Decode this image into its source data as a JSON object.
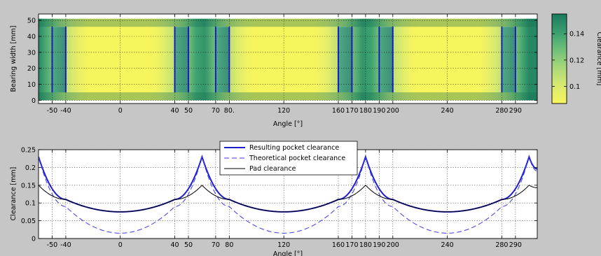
{
  "chart_data": [
    {
      "type": "heatmap",
      "xlabel": "Angle [°]",
      "ylabel": "Bearing width [mm]",
      "colorbar_label": "Clearance [mm]",
      "xlim": [
        -60,
        306
      ],
      "ylim": [
        -2,
        54
      ],
      "x_ticks": [
        -50,
        -40,
        0,
        40,
        50,
        70,
        80,
        120,
        160,
        170,
        180,
        190,
        200,
        240,
        280,
        290
      ],
      "x_tick_labels": [
        "-50",
        "-40",
        "0",
        "40",
        "50",
        "70",
        "80.",
        "120",
        "160",
        "170",
        "180",
        "190",
        "200",
        "240",
        "280",
        "290"
      ],
      "y_ticks": [
        0,
        10,
        20,
        30,
        40,
        50
      ],
      "colorbar_ticks": [
        0.1,
        0.12,
        0.14
      ],
      "colorbar_range": [
        0.087,
        0.155
      ],
      "colormap": [
        "#f7f55d",
        "#d9ea6f",
        "#a9d87a",
        "#6fbf79",
        "#3a9e6f",
        "#1a7a5e"
      ],
      "pad_centers": [
        0,
        120,
        240
      ],
      "pad_clearance_min": 0.075,
      "pad_clearance_max": 0.15,
      "pad_half_width": 60,
      "strip_y": [
        [
          0,
          5
        ],
        [
          46,
          51
        ]
      ],
      "pockets": [
        [
          -50,
          -40
        ],
        [
          40,
          50
        ],
        [
          70,
          80
        ],
        [
          160,
          170
        ],
        [
          190,
          200
        ],
        [
          280,
          290
        ]
      ],
      "pocket_y": [
        5,
        46
      ],
      "pocket_line_color": "#1f1fd0",
      "grid": true
    },
    {
      "type": "line",
      "xlabel": "Angle [°]",
      "ylabel": "Clearance [mm]",
      "xlim": [
        -60,
        306
      ],
      "ylim": [
        0,
        0.25
      ],
      "x_ticks": [
        -50,
        -40,
        0,
        40,
        50,
        70,
        80,
        120,
        160,
        170,
        180,
        190,
        200,
        240,
        280,
        290
      ],
      "x_tick_labels": [
        "-50",
        "-40",
        "0",
        "40",
        "50",
        "70",
        "80",
        "120",
        "160",
        "170",
        "180",
        "190",
        "200",
        "240",
        "280",
        "290"
      ],
      "y_ticks": [
        0,
        0.05,
        0.1,
        0.15,
        0.2,
        0.25
      ],
      "y_tick_labels": [
        "0",
        "0.05",
        "0.1",
        "0.15",
        "0.2",
        "0.25"
      ],
      "legend_position": "top-center",
      "grid": true,
      "series": [
        {
          "name": "Resulting pocket clearance",
          "color": "#1f1fd0",
          "style": "solid",
          "x": [
            -60,
            -40,
            0,
            40,
            60,
            80,
            120,
            160,
            180,
            200,
            240,
            280,
            300,
            306
          ],
          "y": [
            0.23,
            0.11,
            0.075,
            0.11,
            0.23,
            0.11,
            0.075,
            0.11,
            0.23,
            0.11,
            0.075,
            0.11,
            0.23,
            0.196
          ]
        },
        {
          "name": "Theoretical pocket clearance",
          "color": "#3a3af0",
          "style": "dashed",
          "x": [
            -60,
            -40,
            0,
            40,
            60,
            80,
            120,
            160,
            180,
            200,
            240,
            280,
            300,
            306
          ],
          "y": [
            0.23,
            0.09,
            0.015,
            0.09,
            0.23,
            0.09,
            0.015,
            0.09,
            0.23,
            0.09,
            0.015,
            0.09,
            0.23,
            0.19
          ]
        },
        {
          "name": "Pad clearance",
          "color": "#000000",
          "style": "solid",
          "x": [
            -60,
            -40,
            0,
            40,
            60,
            80,
            120,
            160,
            180,
            200,
            240,
            280,
            300,
            306
          ],
          "y": [
            0.15,
            0.11,
            0.075,
            0.11,
            0.15,
            0.11,
            0.075,
            0.11,
            0.15,
            0.11,
            0.075,
            0.11,
            0.15,
            0.143
          ]
        }
      ]
    }
  ]
}
